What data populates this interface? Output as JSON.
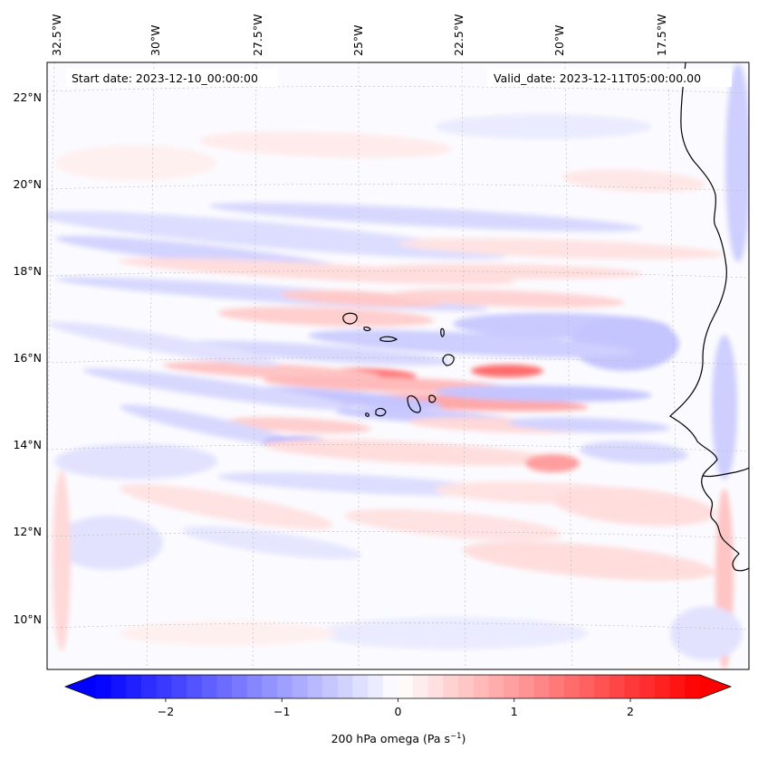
{
  "map": {
    "start_date_text": "Start date: 2023-12-10_00:00:00",
    "valid_date_text": "Valid_date: 2023-12-11T05:00:00.00",
    "lon_labels": [
      "32.5°W",
      "30°W",
      "27.5°W",
      "25°W",
      "22.5°W",
      "20°W",
      "17.5°W"
    ],
    "lat_labels": [
      "22°N",
      "20°N",
      "18°N",
      "16°N",
      "14°N",
      "12°N",
      "10°N"
    ],
    "region": "Cabo Verde islands and West African coast",
    "colormap": "bwr",
    "color_min": "#0000ff",
    "color_mid": "#ffffff",
    "color_max": "#ff0000",
    "coastline_color": "#000000"
  },
  "colorbar": {
    "label": "200 hPa omega (Pa s",
    "label_sup": "−1",
    "label_end": ")",
    "tick_labels": [
      "−2",
      "−1",
      "0",
      "1",
      "2"
    ],
    "tick_values": [
      -2,
      -1,
      0,
      1,
      2
    ],
    "min": -2.6,
    "max": 2.6,
    "levels": 40
  }
}
